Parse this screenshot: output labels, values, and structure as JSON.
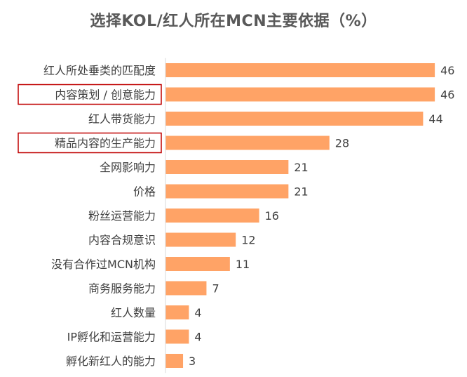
{
  "chart_data": {
    "type": "bar",
    "orientation": "horizontal",
    "title": "选择KOL/红人所在MCN主要依据（%）",
    "categories": [
      "红人所处垂类的匹配度",
      "内容策划 / 创意能力",
      "红人带货能力",
      "精品内容的生产能力",
      "全网影响力",
      "价格",
      "粉丝运营能力",
      "内容合规意识",
      "没有合作过MCN机构",
      "商务服务能力",
      "红人数量",
      "IP孵化和运营能力",
      "孵化新红人的能力"
    ],
    "values": [
      46,
      46,
      44,
      28,
      21,
      21,
      16,
      12,
      11,
      7,
      4,
      4,
      3
    ],
    "highlighted_categories": [
      "内容策划 / 创意能力",
      "精品内容的生产能力"
    ],
    "xlim": [
      0,
      50
    ],
    "grid": false,
    "legend": "none"
  },
  "colors": {
    "bar": "#FFA366",
    "highlight_box": "#C00000",
    "axis": "#D9D9D9",
    "title": "#595959",
    "text": "#404040"
  }
}
